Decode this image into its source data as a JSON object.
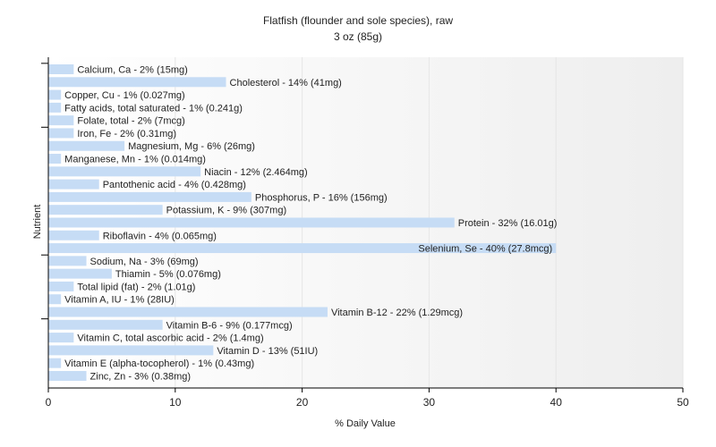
{
  "chart_data": {
    "type": "bar",
    "orientation": "horizontal",
    "title": "Flatfish (flounder and sole species), raw",
    "subtitle": "3 oz (85g)",
    "xlabel": "% Daily Value",
    "ylabel": "Nutrient",
    "xlim": [
      0,
      50
    ],
    "xticks": [
      0,
      10,
      20,
      30,
      40,
      50
    ],
    "grid": true,
    "legend": "none",
    "colors": {
      "bar": "#c6dcf5",
      "gridline": "#e6e6e6",
      "axis": "#000000",
      "background_start": "#ffffff",
      "background_end": "#eeeeee"
    },
    "categories": [
      "Calcium, Ca",
      "Cholesterol",
      "Copper, Cu",
      "Fatty acids, total saturated",
      "Folate, total",
      "Iron, Fe",
      "Magnesium, Mg",
      "Manganese, Mn",
      "Niacin",
      "Pantothenic acid",
      "Phosphorus, P",
      "Potassium, K",
      "Protein",
      "Riboflavin",
      "Selenium, Se",
      "Sodium, Na",
      "Thiamin",
      "Total lipid (fat)",
      "Vitamin A, IU",
      "Vitamin B-12",
      "Vitamin B-6",
      "Vitamin C, total ascorbic acid",
      "Vitamin D",
      "Vitamin E (alpha-tocopherol)",
      "Zinc, Zn"
    ],
    "values": [
      2,
      14,
      1,
      1,
      2,
      2,
      6,
      1,
      12,
      4,
      16,
      9,
      32,
      4,
      40,
      3,
      5,
      2,
      1,
      22,
      9,
      2,
      13,
      1,
      3
    ],
    "labels": [
      "Calcium, Ca - 2% (15mg)",
      "Cholesterol - 14% (41mg)",
      "Copper, Cu - 1% (0.027mg)",
      "Fatty acids, total saturated - 1% (0.241g)",
      "Folate, total - 2% (7mcg)",
      "Iron, Fe - 2% (0.31mg)",
      "Magnesium, Mg - 6% (26mg)",
      "Manganese, Mn - 1% (0.014mg)",
      "Niacin - 12% (2.464mg)",
      "Pantothenic acid - 4% (0.428mg)",
      "Phosphorus, P - 16% (156mg)",
      "Potassium, K - 9% (307mg)",
      "Protein - 32% (16.01g)",
      "Riboflavin - 4% (0.065mg)",
      "Selenium, Se - 40% (27.8mcg)",
      "Sodium, Na - 3% (69mg)",
      "Thiamin - 5% (0.076mg)",
      "Total lipid (fat) - 2% (1.01g)",
      "Vitamin A, IU - 1% (28IU)",
      "Vitamin B-12 - 22% (1.29mcg)",
      "Vitamin B-6 - 9% (0.177mcg)",
      "Vitamin C, total ascorbic acid - 2% (1.4mg)",
      "Vitamin D - 13% (51IU)",
      "Vitamin E (alpha-tocopherol) - 1% (0.43mg)",
      "Zinc, Zn - 3% (0.38mg)"
    ]
  }
}
